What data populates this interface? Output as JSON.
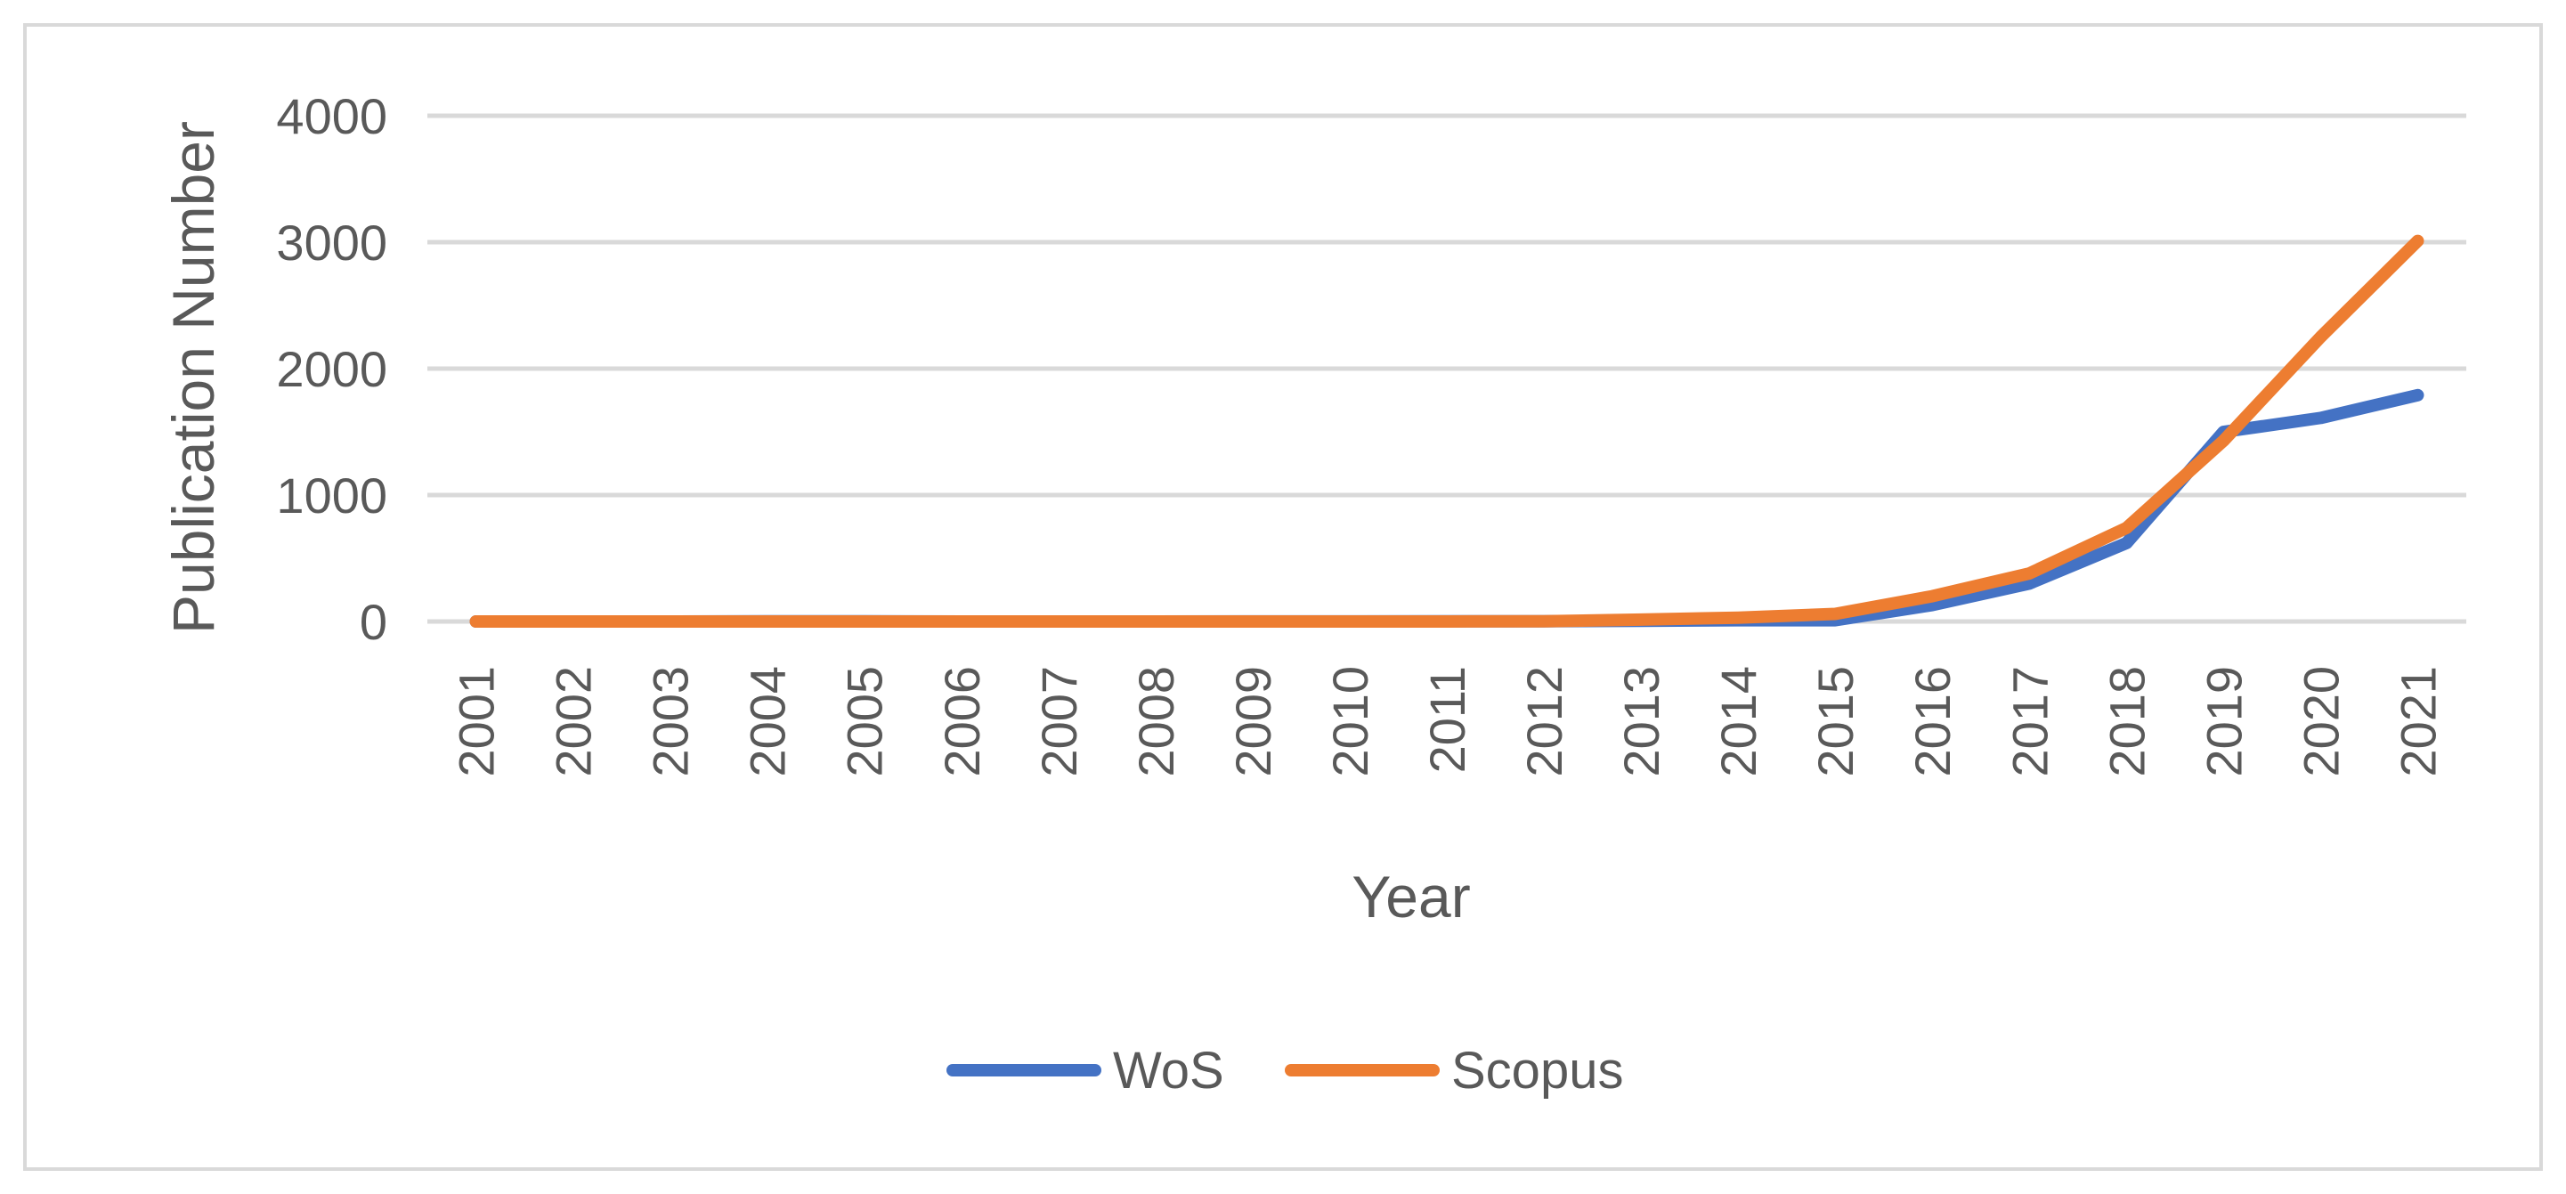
{
  "chart_data": {
    "type": "line",
    "title": "",
    "xlabel": "Year",
    "ylabel": "Publication Number",
    "ylim": [
      0,
      4000
    ],
    "yticks": [
      0,
      1000,
      2000,
      3000,
      4000
    ],
    "grid": true,
    "legend_position": "bottom",
    "x": [
      "2001",
      "2002",
      "2003",
      "2004",
      "2005",
      "2006",
      "2007",
      "2008",
      "2009",
      "2010",
      "2011",
      "2012",
      "2013",
      "2014",
      "2015",
      "2016",
      "2017",
      "2018",
      "2019",
      "2020",
      "2021"
    ],
    "series": [
      {
        "name": "WoS",
        "color": "#4472c4",
        "values": [
          0,
          0,
          0,
          2,
          2,
          0,
          0,
          0,
          1,
          1,
          2,
          2,
          5,
          10,
          10,
          130,
          300,
          620,
          1500,
          1610,
          1790
        ]
      },
      {
        "name": "Scopus",
        "color": "#ed7d31",
        "values": [
          0,
          0,
          0,
          0,
          0,
          0,
          0,
          0,
          0,
          0,
          0,
          2,
          15,
          30,
          60,
          200,
          380,
          740,
          1430,
          2250,
          3010
        ]
      }
    ]
  }
}
